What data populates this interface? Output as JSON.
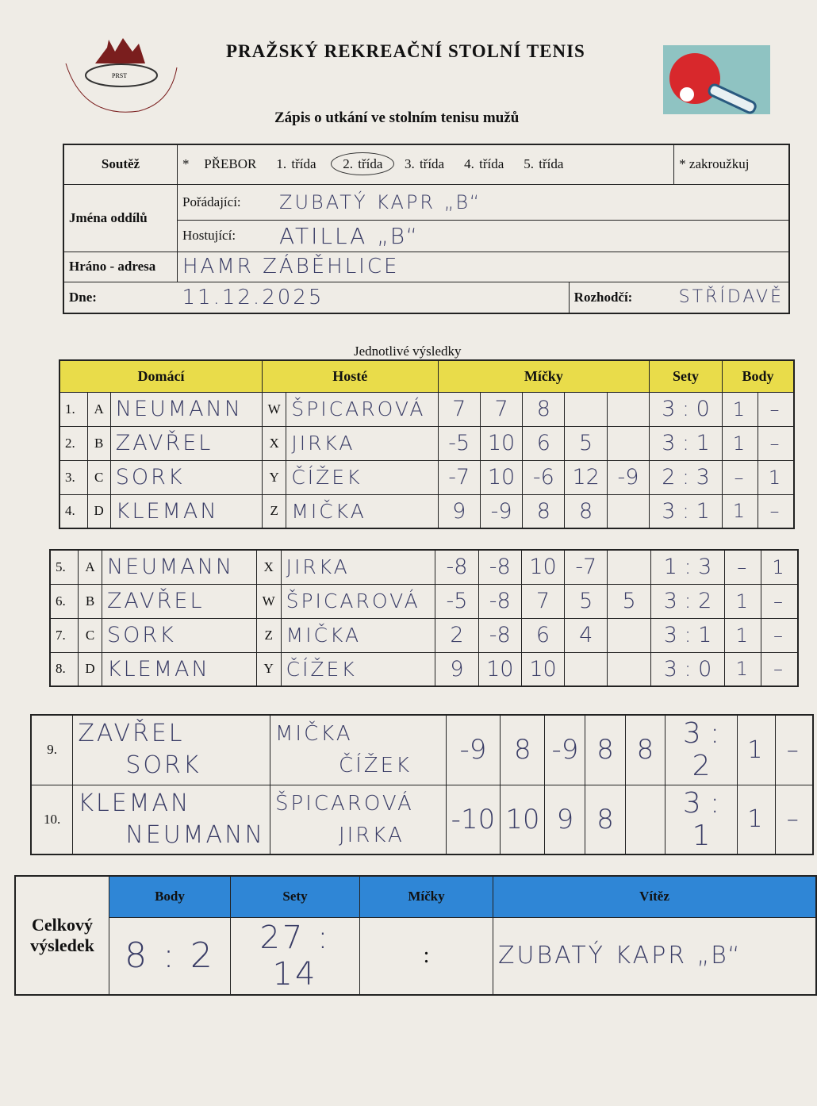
{
  "header": {
    "logo_text": "PRAŽSKÝ REKREAČNÍ STOLNÍ TENIS",
    "logo_abbr": "PRST",
    "title": "PRAŽSKÝ REKREAČNÍ STOLNÍ TENIS",
    "subtitle": "Zápis o utkání ve stolním tenisu mužů"
  },
  "info": {
    "soutez_label": "Soutěž",
    "star": "*",
    "classes": [
      "PŘEBOR",
      "1. třída",
      "2. třída",
      "3. třída",
      "4. třída",
      "5. třída"
    ],
    "selected_class": "2. třída",
    "note": "* zakroužkuj",
    "oddily_label": "Jména oddílů",
    "poradajici_label": "Pořádající:",
    "poradajici": "ZUBATÝ KAPR „B“",
    "hostujici_label": "Hostující:",
    "hostujici": "ATILLA „B“",
    "adresa_label": "Hráno - adresa",
    "adresa": "HAMR ZÁBĚHLICE",
    "dne_label": "Dne:",
    "dne": "11.12.2025",
    "rozhodci_label": "Rozhodčí:",
    "rozhodci": "STŘÍDAVĚ"
  },
  "results": {
    "caption": "Jednotlivé výsledky",
    "headers": {
      "domaci": "Domácí",
      "hoste": "Hosté",
      "micky": "Míčky",
      "sety": "Sety",
      "body": "Body"
    },
    "block1": [
      {
        "n": "1.",
        "hl": "A",
        "home": "NEUMANN",
        "gl": "W",
        "guest": "ŠPICAROVÁ",
        "balls": [
          "7",
          "7",
          "8",
          "",
          ""
        ],
        "sets": "3 : 0",
        "bh": "1",
        "bg": "–"
      },
      {
        "n": "2.",
        "hl": "B",
        "home": "ZAVŘEL",
        "gl": "X",
        "guest": "JIRKA",
        "balls": [
          "-5",
          "10",
          "6",
          "5",
          ""
        ],
        "sets": "3 : 1",
        "bh": "1",
        "bg": "–"
      },
      {
        "n": "3.",
        "hl": "C",
        "home": "SORK",
        "gl": "Y",
        "guest": "ČÍŽEK",
        "balls": [
          "-7",
          "10",
          "-6",
          "12",
          "-9"
        ],
        "sets": "2 : 3",
        "bh": "–",
        "bg": "1"
      },
      {
        "n": "4.",
        "hl": "D",
        "home": "KLEMAN",
        "gl": "Z",
        "guest": "MIČKA",
        "balls": [
          "9",
          "-9",
          "8",
          "8",
          ""
        ],
        "sets": "3 : 1",
        "bh": "1",
        "bg": "–"
      }
    ],
    "block2": [
      {
        "n": "5.",
        "hl": "A",
        "home": "NEUMANN",
        "gl": "X",
        "guest": "JIRKA",
        "balls": [
          "-8",
          "-8",
          "10",
          "-7",
          ""
        ],
        "sets": "1 : 3",
        "bh": "–",
        "bg": "1"
      },
      {
        "n": "6.",
        "hl": "B",
        "home": "ZAVŘEL",
        "gl": "W",
        "guest": "ŠPICAROVÁ",
        "balls": [
          "-5",
          "-8",
          "7",
          "5",
          "5"
        ],
        "sets": "3 : 2",
        "bh": "1",
        "bg": "–"
      },
      {
        "n": "7.",
        "hl": "C",
        "home": "SORK",
        "gl": "Z",
        "guest": "MIČKA",
        "balls": [
          "2",
          "-8",
          "6",
          "4",
          ""
        ],
        "sets": "3 : 1",
        "bh": "1",
        "bg": "–"
      },
      {
        "n": "8.",
        "hl": "D",
        "home": "KLEMAN",
        "gl": "Y",
        "guest": "ČÍŽEK",
        "balls": [
          "9",
          "10",
          "10",
          "",
          ""
        ],
        "sets": "3 : 0",
        "bh": "1",
        "bg": "–"
      }
    ],
    "doubles": [
      {
        "n": "9.",
        "home1": "ZAVŘEL",
        "home2": "SORK",
        "guest1": "MIČKA",
        "guest2": "ČÍŽEK",
        "balls": [
          "-9",
          "8",
          "-9",
          "8",
          "8"
        ],
        "sets": "3 : 2",
        "bh": "1",
        "bg": "–"
      },
      {
        "n": "10.",
        "home1": "KLEMAN",
        "home2": "NEUMANN",
        "guest1": "ŠPICAROVÁ",
        "guest2": "JIRKA",
        "balls": [
          "-10",
          "10",
          "9",
          "8",
          ""
        ],
        "sets": "3 : 1",
        "bh": "1",
        "bg": "–"
      }
    ]
  },
  "total": {
    "label": "Celkový výsledek",
    "body_label": "Body",
    "sety_label": "Sety",
    "micky_label": "Míčky",
    "vitez_label": "Vítěz",
    "body": "8 : 2",
    "sety": "27 : 14",
    "micky": ":",
    "vitez": "ZUBATÝ KAPR „B“"
  },
  "colors": {
    "yellow": "#e9dc4a",
    "blue": "#2f86d6",
    "ink": "#3a3d66"
  }
}
